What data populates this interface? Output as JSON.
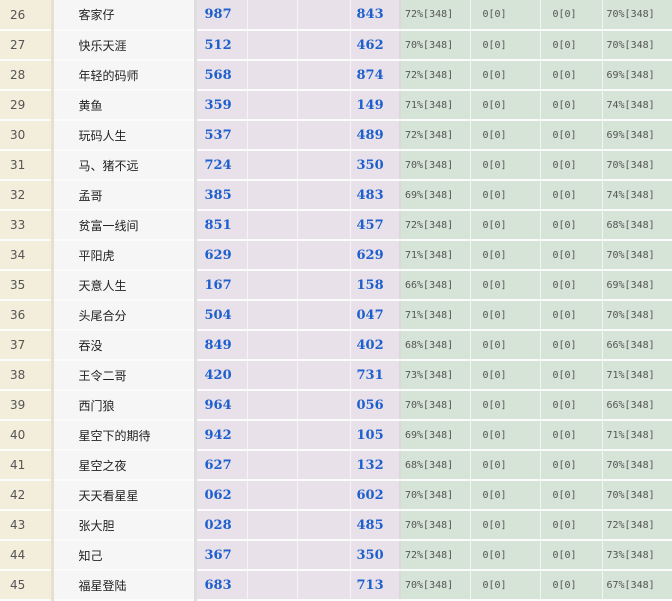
{
  "rows": [
    {
      "rank": "26",
      "name": "客家仔",
      "a": "987",
      "b": "",
      "c": "",
      "d": "843",
      "p1": "72%[348]",
      "z1": "0[0]",
      "z2": "0[0]",
      "p2": "70%[348]"
    },
    {
      "rank": "27",
      "name": "快乐天涯",
      "a": "512",
      "b": "",
      "c": "",
      "d": "462",
      "p1": "70%[348]",
      "z1": "0[0]",
      "z2": "0[0]",
      "p2": "70%[348]"
    },
    {
      "rank": "28",
      "name": "年轻的码师",
      "a": "568",
      "b": "",
      "c": "",
      "d": "874",
      "p1": "72%[348]",
      "z1": "0[0]",
      "z2": "0[0]",
      "p2": "69%[348]"
    },
    {
      "rank": "29",
      "name": "黄鱼",
      "a": "359",
      "b": "",
      "c": "",
      "d": "149",
      "p1": "71%[348]",
      "z1": "0[0]",
      "z2": "0[0]",
      "p2": "74%[348]"
    },
    {
      "rank": "30",
      "name": "玩码人生",
      "a": "537",
      "b": "",
      "c": "",
      "d": "489",
      "p1": "72%[348]",
      "z1": "0[0]",
      "z2": "0[0]",
      "p2": "69%[348]"
    },
    {
      "rank": "31",
      "name": "马、猪不远",
      "a": "724",
      "b": "",
      "c": "",
      "d": "350",
      "p1": "70%[348]",
      "z1": "0[0]",
      "z2": "0[0]",
      "p2": "70%[348]"
    },
    {
      "rank": "32",
      "name": "孟哥",
      "a": "385",
      "b": "",
      "c": "",
      "d": "483",
      "p1": "69%[348]",
      "z1": "0[0]",
      "z2": "0[0]",
      "p2": "74%[348]"
    },
    {
      "rank": "33",
      "name": "贫富一线间",
      "a": "851",
      "b": "",
      "c": "",
      "d": "457",
      "p1": "72%[348]",
      "z1": "0[0]",
      "z2": "0[0]",
      "p2": "68%[348]"
    },
    {
      "rank": "34",
      "name": "平阳虎",
      "a": "629",
      "b": "",
      "c": "",
      "d": "629",
      "p1": "71%[348]",
      "z1": "0[0]",
      "z2": "0[0]",
      "p2": "70%[348]"
    },
    {
      "rank": "35",
      "name": "天意人生",
      "a": "167",
      "b": "",
      "c": "",
      "d": "158",
      "p1": "66%[348]",
      "z1": "0[0]",
      "z2": "0[0]",
      "p2": "69%[348]"
    },
    {
      "rank": "36",
      "name": "头尾合分",
      "a": "504",
      "b": "",
      "c": "",
      "d": "047",
      "p1": "71%[348]",
      "z1": "0[0]",
      "z2": "0[0]",
      "p2": "70%[348]"
    },
    {
      "rank": "37",
      "name": "吞没",
      "a": "849",
      "b": "",
      "c": "",
      "d": "402",
      "p1": "68%[348]",
      "z1": "0[0]",
      "z2": "0[0]",
      "p2": "66%[348]"
    },
    {
      "rank": "38",
      "name": "王令二哥",
      "a": "420",
      "b": "",
      "c": "",
      "d": "731",
      "p1": "73%[348]",
      "z1": "0[0]",
      "z2": "0[0]",
      "p2": "71%[348]"
    },
    {
      "rank": "39",
      "name": "西门狼",
      "a": "964",
      "b": "",
      "c": "",
      "d": "056",
      "p1": "70%[348]",
      "z1": "0[0]",
      "z2": "0[0]",
      "p2": "66%[348]"
    },
    {
      "rank": "40",
      "name": "星空下的期待",
      "a": "942",
      "b": "",
      "c": "",
      "d": "105",
      "p1": "69%[348]",
      "z1": "0[0]",
      "z2": "0[0]",
      "p2": "71%[348]"
    },
    {
      "rank": "41",
      "name": "星空之夜",
      "a": "627",
      "b": "",
      "c": "",
      "d": "132",
      "p1": "68%[348]",
      "z1": "0[0]",
      "z2": "0[0]",
      "p2": "70%[348]"
    },
    {
      "rank": "42",
      "name": "天天看星星",
      "a": "062",
      "b": "",
      "c": "",
      "d": "602",
      "p1": "70%[348]",
      "z1": "0[0]",
      "z2": "0[0]",
      "p2": "70%[348]"
    },
    {
      "rank": "43",
      "name": "张大胆",
      "a": "028",
      "b": "",
      "c": "",
      "d": "485",
      "p1": "70%[348]",
      "z1": "0[0]",
      "z2": "0[0]",
      "p2": "72%[348]"
    },
    {
      "rank": "44",
      "name": "知己",
      "a": "367",
      "b": "",
      "c": "",
      "d": "350",
      "p1": "72%[348]",
      "z1": "0[0]",
      "z2": "0[0]",
      "p2": "73%[348]"
    },
    {
      "rank": "45",
      "name": "福星登陆",
      "a": "683",
      "b": "",
      "c": "",
      "d": "713",
      "p1": "70%[348]",
      "z1": "0[0]",
      "z2": "0[0]",
      "p2": "67%[348]"
    }
  ]
}
